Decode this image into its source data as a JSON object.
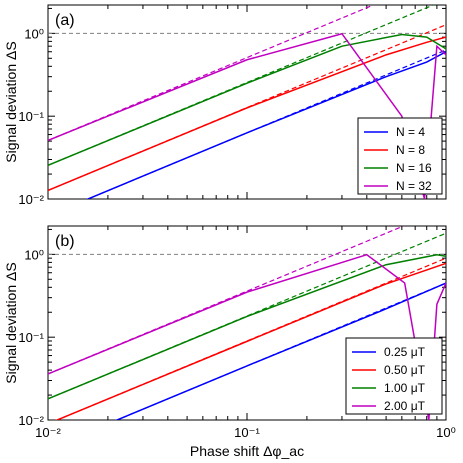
{
  "chart_data": [
    {
      "type": "line",
      "panel_label": "(a)",
      "xlabel": "Phase shift Δφ_ac",
      "ylabel": "Signal deviation ΔS",
      "x_scale": "log",
      "y_scale": "log",
      "xlim": [
        0.01,
        1.0
      ],
      "ylim": [
        0.01,
        2.2
      ],
      "x_tick_labels": [
        "10⁻²",
        "10⁻¹",
        "10⁰"
      ],
      "y_tick_labels": [
        "10⁻²",
        "10⁻¹",
        "10⁰"
      ],
      "reference_line": {
        "y": 1.0,
        "style": "dashed",
        "color": "#808080"
      },
      "legend": {
        "position": "lower-right",
        "entries": [
          "N = 4",
          "N = 8",
          "N = 16",
          "N = 32"
        ]
      },
      "series": [
        {
          "name": "N = 4",
          "color": "#0000ff",
          "linear_slope": 0.63,
          "max": 1.0,
          "x": [
            0.01,
            0.1,
            0.5,
            0.8,
            1.0
          ],
          "y": [
            0.0063,
            0.063,
            0.3,
            0.45,
            0.6
          ]
        },
        {
          "name": "N = 8",
          "color": "#ff0000",
          "linear_slope": 1.27,
          "max": 1.0,
          "x": [
            0.01,
            0.1,
            0.5,
            0.8,
            1.0
          ],
          "y": [
            0.0127,
            0.126,
            0.55,
            0.78,
            0.9
          ]
        },
        {
          "name": "N = 16",
          "color": "#008000",
          "linear_slope": 2.55,
          "max": 1.0,
          "x": [
            0.01,
            0.1,
            0.3,
            0.6,
            0.8,
            1.0
          ],
          "y": [
            0.0255,
            0.25,
            0.7,
            0.97,
            0.9,
            0.65
          ]
        },
        {
          "name": "N = 32",
          "color": "#c000c0",
          "linear_slope": 5.1,
          "max": 1.0,
          "x": [
            0.01,
            0.1,
            0.3,
            0.6,
            0.78,
            0.9,
            1.0
          ],
          "y": [
            0.051,
            0.48,
            0.99,
            0.1,
            0.01,
            0.7,
            0.55
          ]
        }
      ]
    },
    {
      "type": "line",
      "panel_label": "(b)",
      "xlabel": "Phase shift Δφ_ac",
      "ylabel": "Signal deviation ΔS",
      "x_scale": "log",
      "y_scale": "log",
      "xlim": [
        0.01,
        1.0
      ],
      "ylim": [
        0.01,
        2.2
      ],
      "x_tick_labels": [
        "10⁻²",
        "10⁻¹",
        "10⁰"
      ],
      "y_tick_labels": [
        "10⁻²",
        "10⁻¹",
        "10⁰"
      ],
      "reference_line": {
        "y": 1.0,
        "style": "dashed",
        "color": "#808080"
      },
      "legend": {
        "position": "lower-right",
        "entries": [
          "0.25 μT",
          "0.50 μT",
          "1.00 μT",
          "2.00 μT"
        ]
      },
      "series": [
        {
          "name": "0.25 μT",
          "color": "#0000ff",
          "linear_slope": 0.45,
          "max": 1.0,
          "x": [
            0.01,
            0.1,
            0.5,
            1.0
          ],
          "y": [
            0.0045,
            0.045,
            0.22,
            0.45
          ]
        },
        {
          "name": "0.50 μT",
          "color": "#ff0000",
          "linear_slope": 0.9,
          "max": 1.0,
          "x": [
            0.01,
            0.1,
            0.5,
            1.0
          ],
          "y": [
            0.009,
            0.089,
            0.44,
            0.78
          ]
        },
        {
          "name": "1.00 μT",
          "color": "#008000",
          "linear_slope": 1.8,
          "max": 1.0,
          "x": [
            0.01,
            0.1,
            0.5,
            0.9,
            1.0
          ],
          "y": [
            0.018,
            0.178,
            0.75,
            0.99,
            0.95
          ]
        },
        {
          "name": "2.00 μT",
          "color": "#c000c0",
          "linear_slope": 3.6,
          "max": 1.0,
          "x": [
            0.01,
            0.1,
            0.4,
            0.62,
            0.82,
            0.9,
            1.0
          ],
          "y": [
            0.036,
            0.35,
            0.99,
            0.45,
            0.01,
            0.25,
            0.45
          ]
        }
      ]
    }
  ]
}
